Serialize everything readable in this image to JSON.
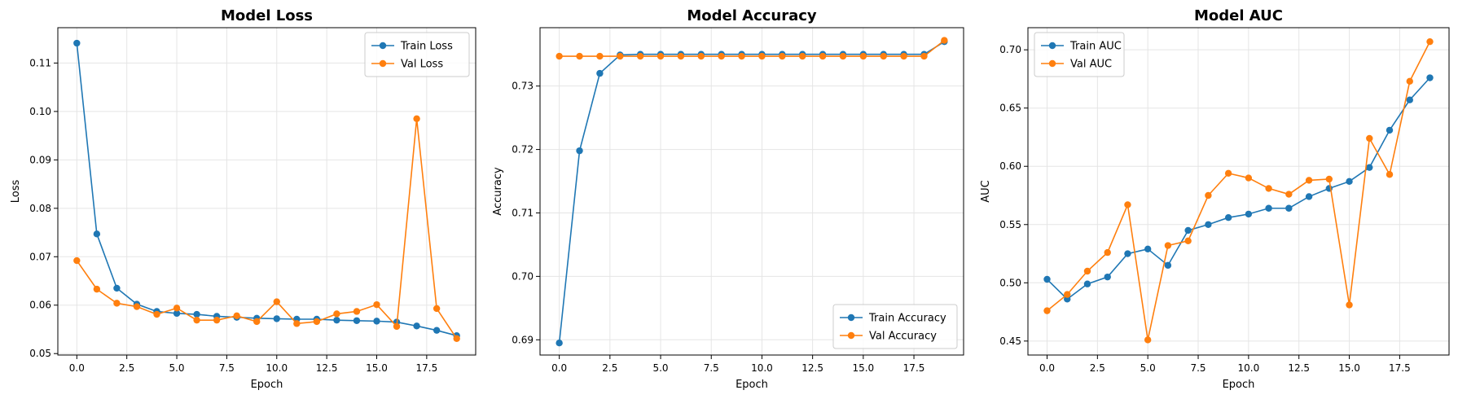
{
  "colors": {
    "series1": "#1f77b4",
    "series2": "#ff7f0e",
    "grid": "#e5e5e5"
  },
  "chart_data": [
    {
      "type": "line",
      "title": "Model Loss",
      "xlabel": "Epoch",
      "ylabel": "Loss",
      "xlim": [
        -0.95,
        19.95
      ],
      "ylim": [
        0.0497,
        0.1173
      ],
      "xticks": [
        0,
        2.5,
        5,
        7.5,
        10,
        12.5,
        15,
        17.5
      ],
      "xtick_labels": [
        "0.0",
        "2.5",
        "5.0",
        "7.5",
        "10.0",
        "12.5",
        "15.0",
        "17.5"
      ],
      "yticks": [
        0.05,
        0.06,
        0.07,
        0.08,
        0.09,
        0.1,
        0.11
      ],
      "ytick_labels": [
        "0.05",
        "0.06",
        "0.07",
        "0.08",
        "0.09",
        "0.10",
        "0.11"
      ],
      "grid": true,
      "legend_position": "top-right",
      "x": [
        0,
        1,
        2,
        3,
        4,
        5,
        6,
        7,
        8,
        9,
        10,
        11,
        12,
        13,
        14,
        15,
        16,
        17,
        18,
        19
      ],
      "series": [
        {
          "name": "Train Loss",
          "color": "#1f77b4",
          "values": [
            0.1141,
            0.0747,
            0.0635,
            0.0602,
            0.0587,
            0.0583,
            0.0581,
            0.0577,
            0.0575,
            0.0573,
            0.0572,
            0.0571,
            0.0571,
            0.0569,
            0.0568,
            0.0567,
            0.0565,
            0.0557,
            0.0548,
            0.0537
          ]
        },
        {
          "name": "Val Loss",
          "color": "#ff7f0e",
          "values": [
            0.0692,
            0.0633,
            0.0604,
            0.0597,
            0.0581,
            0.0594,
            0.0569,
            0.0569,
            0.0578,
            0.0566,
            0.0607,
            0.0562,
            0.0566,
            0.0582,
            0.0587,
            0.0601,
            0.0556,
            0.0985,
            0.0593,
            0.0531
          ]
        }
      ]
    },
    {
      "type": "line",
      "title": "Model Accuracy",
      "xlabel": "Epoch",
      "ylabel": "Accuracy",
      "xlim": [
        -0.95,
        19.95
      ],
      "ylim": [
        0.6876,
        0.7392
      ],
      "xticks": [
        0,
        2.5,
        5,
        7.5,
        10,
        12.5,
        15,
        17.5
      ],
      "xtick_labels": [
        "0.0",
        "2.5",
        "5.0",
        "7.5",
        "10.0",
        "12.5",
        "15.0",
        "17.5"
      ],
      "yticks": [
        0.69,
        0.7,
        0.71,
        0.72,
        0.73
      ],
      "ytick_labels": [
        "0.69",
        "0.70",
        "0.71",
        "0.72",
        "0.73"
      ],
      "grid": true,
      "legend_position": "bottom-right",
      "x": [
        0,
        1,
        2,
        3,
        4,
        5,
        6,
        7,
        8,
        9,
        10,
        11,
        12,
        13,
        14,
        15,
        16,
        17,
        18,
        19
      ],
      "series": [
        {
          "name": "Train Accuracy",
          "color": "#1f77b4",
          "values": [
            0.6895,
            0.7198,
            0.732,
            0.7349,
            0.735,
            0.735,
            0.735,
            0.735,
            0.735,
            0.735,
            0.735,
            0.735,
            0.735,
            0.735,
            0.735,
            0.735,
            0.735,
            0.735,
            0.735,
            0.737
          ]
        },
        {
          "name": "Val Accuracy",
          "color": "#ff7f0e",
          "values": [
            0.7347,
            0.7347,
            0.7347,
            0.7347,
            0.7347,
            0.7347,
            0.7347,
            0.7347,
            0.7347,
            0.7347,
            0.7347,
            0.7347,
            0.7347,
            0.7347,
            0.7347,
            0.7347,
            0.7347,
            0.7347,
            0.7347,
            0.7372
          ]
        }
      ]
    },
    {
      "type": "line",
      "title": "Model AUC",
      "xlabel": "Epoch",
      "ylabel": "AUC",
      "xlim": [
        -0.95,
        19.95
      ],
      "ylim": [
        0.438,
        0.719
      ],
      "xticks": [
        0,
        2.5,
        5,
        7.5,
        10,
        12.5,
        15,
        17.5
      ],
      "xtick_labels": [
        "0.0",
        "2.5",
        "5.0",
        "7.5",
        "10.0",
        "12.5",
        "15.0",
        "17.5"
      ],
      "yticks": [
        0.45,
        0.5,
        0.55,
        0.6,
        0.65,
        0.7
      ],
      "ytick_labels": [
        "0.45",
        "0.50",
        "0.55",
        "0.60",
        "0.65",
        "0.70"
      ],
      "grid": true,
      "legend_position": "top-left",
      "x": [
        0,
        1,
        2,
        3,
        4,
        5,
        6,
        7,
        8,
        9,
        10,
        11,
        12,
        13,
        14,
        15,
        16,
        17,
        18,
        19
      ],
      "series": [
        {
          "name": "Train AUC",
          "color": "#1f77b4",
          "values": [
            0.503,
            0.486,
            0.499,
            0.505,
            0.525,
            0.529,
            0.515,
            0.545,
            0.55,
            0.556,
            0.559,
            0.564,
            0.564,
            0.574,
            0.581,
            0.587,
            0.599,
            0.631,
            0.657,
            0.676
          ]
        },
        {
          "name": "Val AUC",
          "color": "#ff7f0e",
          "values": [
            0.476,
            0.49,
            0.51,
            0.526,
            0.567,
            0.451,
            0.532,
            0.536,
            0.575,
            0.594,
            0.59,
            0.581,
            0.576,
            0.588,
            0.589,
            0.481,
            0.624,
            0.593,
            0.673,
            0.707
          ]
        }
      ]
    }
  ]
}
